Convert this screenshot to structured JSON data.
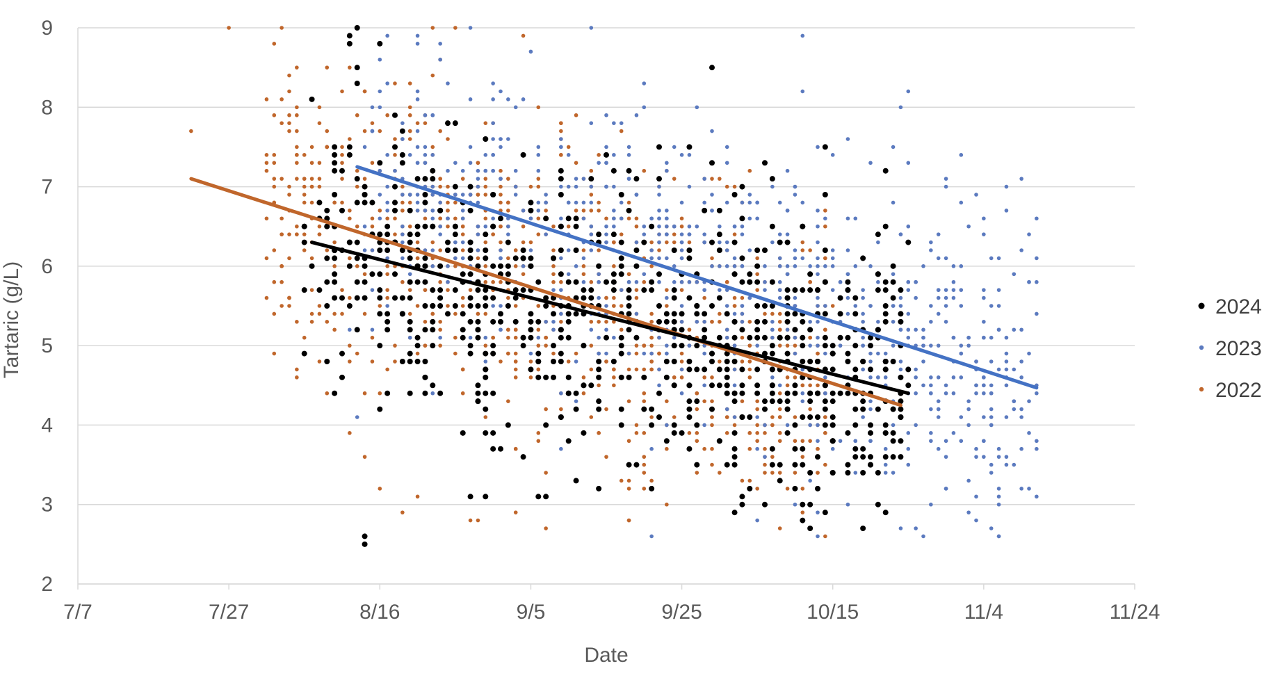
{
  "chart_data": {
    "type": "scatter",
    "title": "",
    "xlabel": "Date",
    "ylabel": "Tartaric  (g/L)",
    "xlim": [
      0,
      140
    ],
    "ylim": [
      2,
      9
    ],
    "x_tick_labels": [
      "7/7",
      "7/27",
      "8/16",
      "9/5",
      "9/25",
      "10/15",
      "11/4",
      "11/24"
    ],
    "y_tick_labels": [
      "2",
      "3",
      "4",
      "5",
      "6",
      "7",
      "8",
      "9"
    ],
    "grid": "horizontal",
    "legend_position": "right",
    "x_unit": "days since 7/7",
    "series": [
      {
        "name": "2024",
        "color": "#000000",
        "marker_color": "#000000",
        "trend": {
          "x": [
            31,
            110
          ],
          "y": [
            6.3,
            4.4
          ]
        },
        "cloud": {
          "x_range": [
            30,
            110
          ],
          "y_center": 5.4,
          "y_spread": 1.6,
          "count": 750,
          "seed": 24
        },
        "points": [
          {
            "x": 37,
            "y": 9.0
          },
          {
            "x": 36,
            "y": 8.8
          },
          {
            "x": 36,
            "y": 8.9
          },
          {
            "x": 38,
            "y": 2.6
          },
          {
            "x": 38,
            "y": 2.5
          },
          {
            "x": 52,
            "y": 3.1
          },
          {
            "x": 59,
            "y": 3.6
          },
          {
            "x": 61,
            "y": 3.1
          },
          {
            "x": 62,
            "y": 3.1
          },
          {
            "x": 66,
            "y": 3.3
          },
          {
            "x": 84,
            "y": 8.5
          },
          {
            "x": 91,
            "y": 3.0
          },
          {
            "x": 88,
            "y": 3.1
          },
          {
            "x": 30,
            "y": 5.7
          },
          {
            "x": 35,
            "y": 4.6
          },
          {
            "x": 110,
            "y": 6.3
          },
          {
            "x": 109,
            "y": 3.6
          },
          {
            "x": 104,
            "y": 3.7
          },
          {
            "x": 100,
            "y": 3.4
          },
          {
            "x": 99,
            "y": 7.5
          }
        ]
      },
      {
        "name": "2023",
        "color": "#4472C4",
        "marker_color": "#5B7ABF",
        "trend": {
          "x": [
            37,
            127
          ],
          "y": [
            7.25,
            4.47
          ]
        },
        "cloud": {
          "x_range": [
            38,
            127
          ],
          "y_center": 5.5,
          "y_spread": 1.7,
          "count": 900,
          "seed": 23
        },
        "points": [
          {
            "x": 52,
            "y": 9.0
          },
          {
            "x": 68,
            "y": 9.0
          },
          {
            "x": 96,
            "y": 8.9
          },
          {
            "x": 96,
            "y": 8.2
          },
          {
            "x": 109,
            "y": 8.0
          },
          {
            "x": 117,
            "y": 7.4
          },
          {
            "x": 125,
            "y": 7.1
          },
          {
            "x": 126,
            "y": 6.4
          },
          {
            "x": 127,
            "y": 6.1
          },
          {
            "x": 125,
            "y": 3.2
          },
          {
            "x": 112,
            "y": 2.6
          },
          {
            "x": 111,
            "y": 2.7
          },
          {
            "x": 90,
            "y": 2.8
          },
          {
            "x": 95,
            "y": 3.0
          },
          {
            "x": 37,
            "y": 4.1
          },
          {
            "x": 36,
            "y": 5.2
          },
          {
            "x": 120,
            "y": 3.6
          },
          {
            "x": 113,
            "y": 3.8
          }
        ]
      },
      {
        "name": "2022",
        "color": "#C0662B",
        "marker_color": "#C0662B",
        "trend": {
          "x": [
            15,
            109
          ],
          "y": [
            7.1,
            4.25
          ]
        },
        "cloud": {
          "x_range": [
            25,
            100
          ],
          "y_center": 5.6,
          "y_spread": 1.7,
          "count": 1000,
          "seed": 22
        },
        "points": [
          {
            "x": 15,
            "y": 7.7
          },
          {
            "x": 20,
            "y": 9.0
          },
          {
            "x": 26,
            "y": 8.8
          },
          {
            "x": 28,
            "y": 8.2
          },
          {
            "x": 28,
            "y": 8.4
          },
          {
            "x": 28,
            "y": 7.7
          },
          {
            "x": 29,
            "y": 7.4
          },
          {
            "x": 31,
            "y": 5.7
          },
          {
            "x": 32,
            "y": 8.0
          },
          {
            "x": 53,
            "y": 2.8
          },
          {
            "x": 52,
            "y": 2.8
          },
          {
            "x": 58,
            "y": 2.9
          },
          {
            "x": 45,
            "y": 3.1
          },
          {
            "x": 40,
            "y": 3.2
          },
          {
            "x": 47,
            "y": 9.0
          },
          {
            "x": 50,
            "y": 9.0
          },
          {
            "x": 59,
            "y": 8.9
          }
        ]
      }
    ]
  }
}
